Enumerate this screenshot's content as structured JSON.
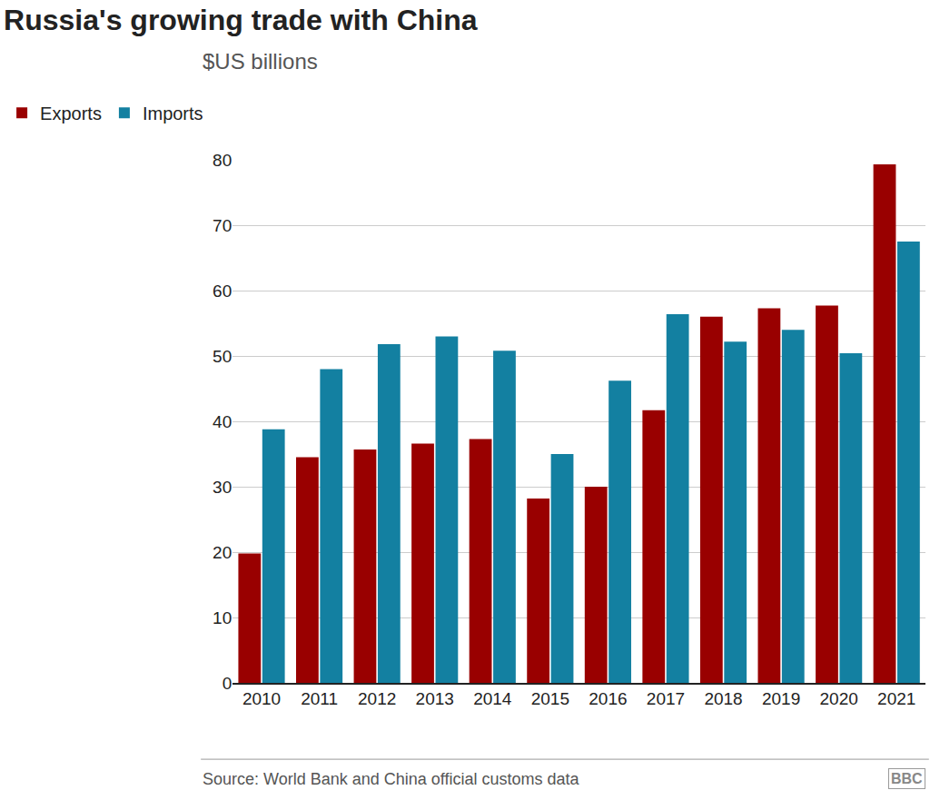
{
  "chart_data": {
    "type": "bar",
    "title": "Russia's growing trade with China",
    "subtitle": "$US billions",
    "source": "Source: World Bank and China official customs data",
    "logo": "BBC",
    "categories": [
      "2010",
      "2011",
      "2012",
      "2013",
      "2014",
      "2015",
      "2016",
      "2017",
      "2018",
      "2019",
      "2020",
      "2021"
    ],
    "series": [
      {
        "name": "Exports",
        "color": "#990000",
        "values": [
          19.8,
          34.5,
          35.7,
          36.6,
          37.3,
          28.2,
          30.0,
          41.7,
          56.0,
          57.3,
          57.7,
          79.3
        ]
      },
      {
        "name": "Imports",
        "color": "#1380a1",
        "values": [
          38.8,
          48.0,
          51.8,
          53.0,
          50.8,
          35.0,
          46.2,
          56.4,
          52.2,
          54.0,
          50.4,
          67.5
        ]
      }
    ],
    "ylim": [
      0,
      80
    ],
    "yticks": [
      0,
      10,
      20,
      30,
      40,
      50,
      60,
      70,
      80
    ],
    "grid": true,
    "legend": "top-left"
  }
}
